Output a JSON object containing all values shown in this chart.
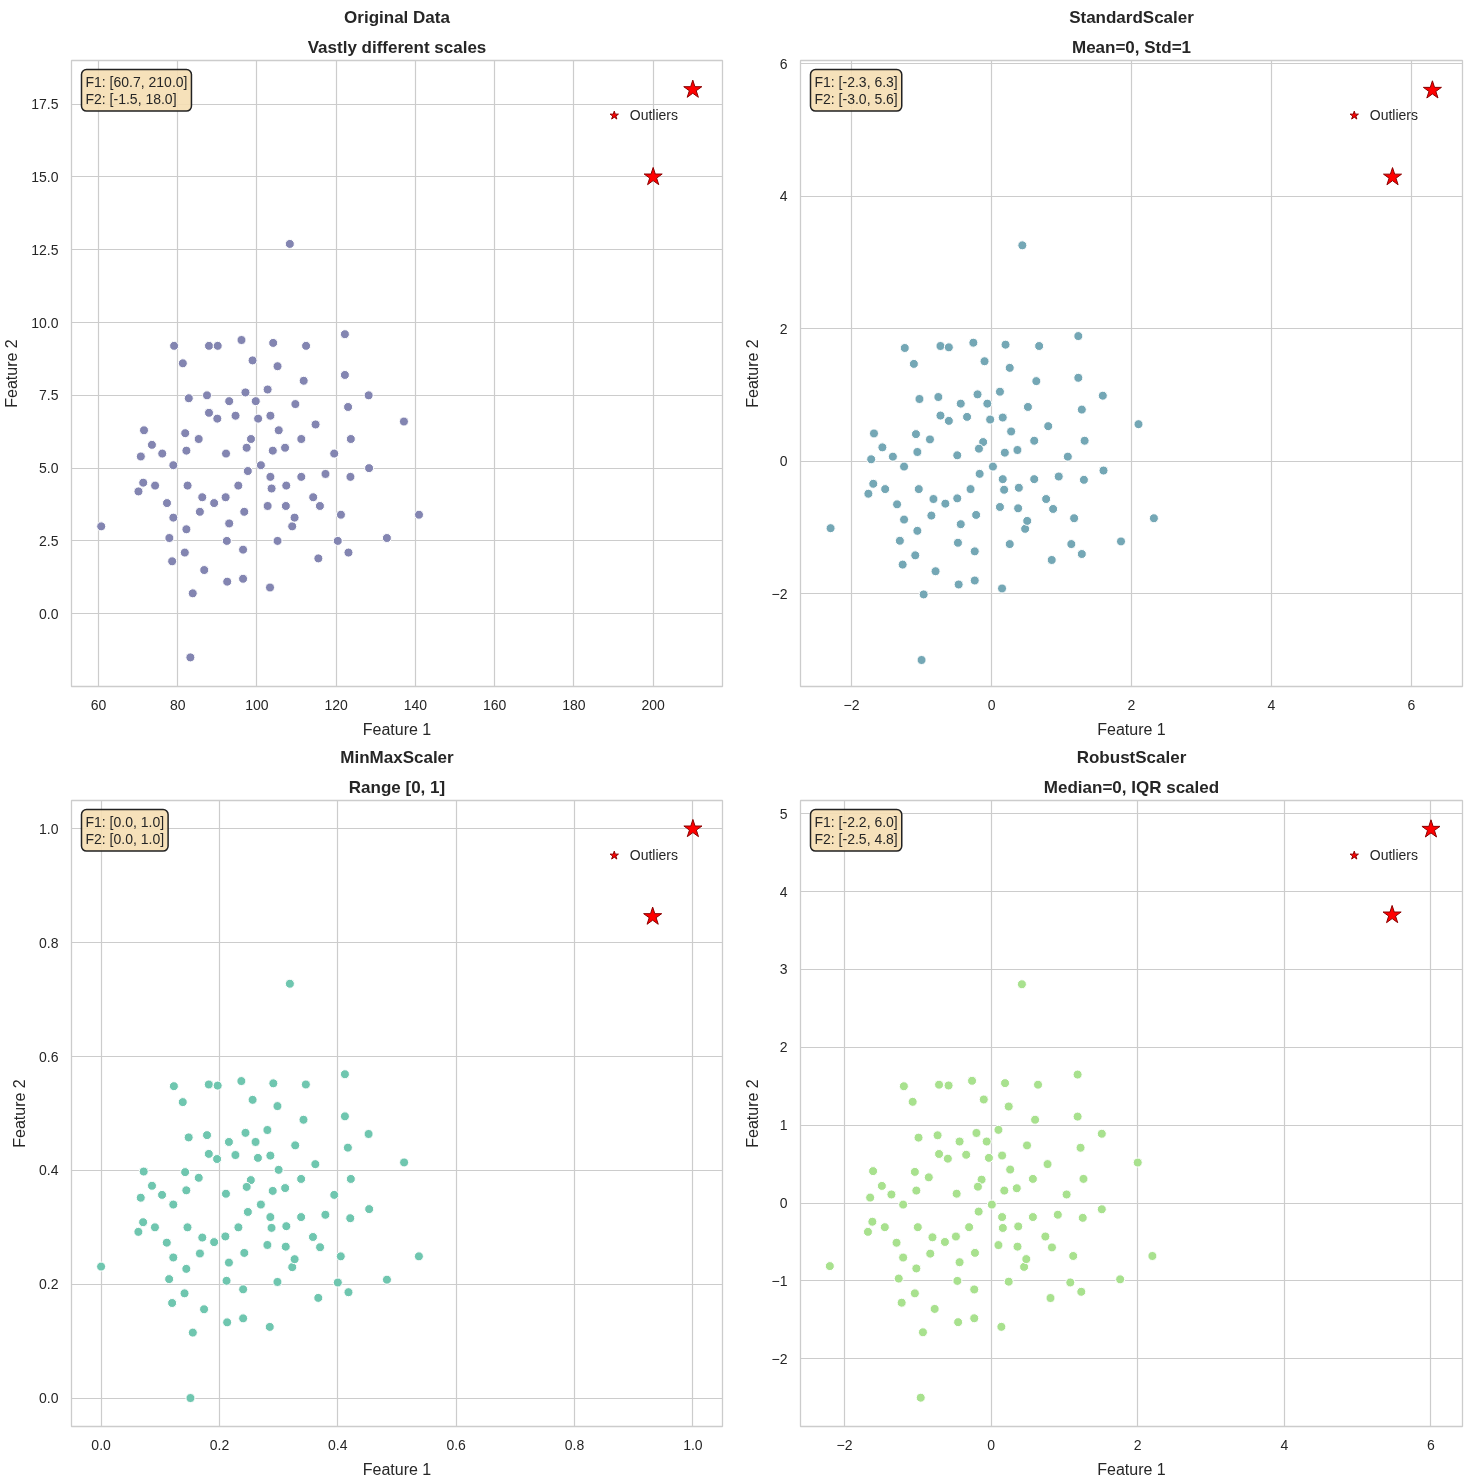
{
  "chart_data": [
    {
      "type": "scatter",
      "title": "Original Data",
      "subtitle": "Vastly different scales",
      "xlabel": "Feature 1",
      "ylabel": "Feature 2",
      "xlim": [
        53.2,
        217.5
      ],
      "ylim": [
        -2.5,
        19.0
      ],
      "xticks": [
        60,
        80,
        100,
        120,
        140,
        160,
        180,
        200
      ],
      "yticks": [
        {
          "value": 0,
          "label": "0.0"
        },
        2.5,
        {
          "value": 5,
          "label": "5.0"
        },
        7.5,
        {
          "value": 10,
          "label": "10.0"
        },
        12.5,
        {
          "value": 15,
          "label": "15.0"
        },
        17.5
      ],
      "grid": true,
      "legend": "top right",
      "annotations": [
        "F1: [60.7, 210.0]\nF2: [-1.5, 18.0]"
      ],
      "series": [
        {
          "color": "#8385b1",
          "marker": "circle",
          "x": [
            60.7,
            83.2,
            83.8,
            108.3,
            140.9,
            137.1,
            132.8,
            122.2,
            128.2,
            122.2,
            123.0,
            123.7,
            128.3,
            123.6,
            121.2,
            120.4,
            123.1,
            115.5,
            103.3,
            96.5,
            92.5,
            86.7,
            78.6,
            81.8,
            77.9,
            82.2,
            92.4,
            96.5,
            105.2,
            108.9,
            115.9,
            109.5,
            70.1,
            71.3,
            74.3,
            70.7,
            73.5,
            71.5,
            76.1,
            78.9,
            77.3,
            78.9,
            79.1,
            81.3,
            87.9,
            90.1,
            96.1,
            104.1,
            112.4,
            98.9,
            105.2,
            111.8,
            82.8,
            87.4,
            93.0,
            97.1,
            102.7,
            109.7,
            81.9,
            82.2,
            82.5,
            86.2,
            89.2,
            93.0,
            96.8,
            92.2,
            92.1,
            95.3,
            97.7,
            101.0,
            103.4,
            104.0,
            107.1,
            107.4,
            102.7,
            107.3,
            111.2,
            114.2,
            117.3,
            119.5,
            111.2,
            114.8,
            85.3,
            87.9,
            90.0,
            94.6,
            98.5,
            100.3,
            103.4,
            105.5,
            99.7,
            97.4,
            85.6,
            103.7
          ],
          "values": [
            3.0,
            -1.5,
            0.7,
            12.7,
            3.4,
            6.6,
            2.6,
            9.6,
            7.5,
            8.2,
            7.1,
            6.0,
            5.0,
            4.7,
            3.4,
            2.5,
            2.1,
            1.9,
            0.9,
            1.2,
            1.1,
            1.5,
            1.8,
            2.1,
            2.6,
            2.9,
            2.5,
            2.2,
            2.5,
            3.0,
            3.7,
            3.3,
            4.2,
            4.5,
            4.4,
            5.4,
            5.8,
            6.3,
            5.5,
            5.1,
            3.8,
            3.3,
            9.2,
            8.6,
            9.2,
            9.2,
            9.4,
            9.3,
            9.2,
            8.7,
            8.5,
            8.0,
            7.4,
            7.5,
            7.3,
            7.6,
            7.7,
            7.2,
            6.2,
            5.6,
            4.4,
            4.0,
            3.8,
            3.1,
            3.5,
            5.5,
            4.0,
            4.4,
            4.9,
            5.1,
            4.7,
            5.6,
            5.7,
            4.4,
            3.7,
            3.7,
            4.7,
            4.0,
            4.8,
            5.5,
            6.0,
            6.5,
            6.0,
            6.9,
            6.7,
            6.8,
            6.0,
            6.7,
            6.8,
            6.3,
            7.3,
            5.7,
            3.5,
            4.3
          ]
        },
        {
          "name": "Outliers",
          "color": "#ff0000",
          "marker": "star",
          "x": [
            210.0,
            200.0
          ],
          "values": [
            18.0,
            15.0
          ]
        }
      ]
    },
    {
      "type": "scatter",
      "title": "StandardScaler",
      "subtitle": "Mean=0, Std=1",
      "xlabel": "Feature 1",
      "ylabel": "Feature 2",
      "xlim": [
        -2.73,
        6.73
      ],
      "ylim": [
        -3.4,
        6.05
      ],
      "xticks": [
        {
          "value": -2,
          "label": "−2"
        },
        0,
        2,
        4,
        6
      ],
      "yticks": [
        {
          "value": -2,
          "label": "−2"
        },
        0,
        2,
        4,
        6
      ],
      "grid": true,
      "legend": "top right",
      "annotations": [
        "F1: [-2.3, 6.3]\nF2: [-3.0, 5.6]"
      ],
      "series": [
        {
          "color": "#74a7b5",
          "marker": "circle",
          "x": [
            -2.3,
            -1.0,
            -0.97,
            0.44,
            2.32,
            2.1,
            1.85,
            1.24,
            1.59,
            1.24,
            1.29,
            1.33,
            1.6,
            1.32,
            1.18,
            1.14,
            1.29,
            0.86,
            0.15,
            -0.24,
            -0.47,
            -0.8,
            -1.27,
            -1.09,
            -1.31,
            -1.06,
            -0.48,
            -0.24,
            0.26,
            0.48,
            0.88,
            0.51,
            -1.76,
            -1.69,
            -1.52,
            -1.72,
            -1.56,
            -1.68,
            -1.41,
            -1.25,
            -1.35,
            -1.25,
            -1.24,
            -1.11,
            -0.73,
            -0.61,
            -0.26,
            0.2,
            0.68,
            -0.1,
            0.26,
            0.64,
            -1.03,
            -0.76,
            -0.44,
            -0.2,
            0.12,
            0.52,
            -1.08,
            -1.06,
            -1.04,
            -0.83,
            -0.66,
            -0.44,
            -0.22,
            -0.49,
            -0.49,
            -0.3,
            -0.17,
            0.02,
            0.16,
            0.19,
            0.37,
            0.39,
            0.12,
            0.38,
            0.61,
            0.78,
            0.96,
            1.09,
            0.61,
            0.81,
            -0.88,
            -0.73,
            -0.61,
            -0.35,
            -0.12,
            -0.02,
            0.16,
            0.28,
            -0.06,
            -0.18,
            -0.86,
            0.18
          ],
          "values": [
            -1.01,
            -3.0,
            -2.01,
            3.26,
            -0.86,
            0.56,
            -1.21,
            1.89,
            0.99,
            1.26,
            0.78,
            0.31,
            -0.14,
            -0.28,
            -0.86,
            -1.25,
            -1.4,
            -1.49,
            -1.92,
            -1.8,
            -1.86,
            -1.66,
            -1.56,
            -1.42,
            -1.2,
            -1.05,
            -1.23,
            -1.36,
            -1.25,
            -1.02,
            -0.72,
            -0.9,
            -0.49,
            -0.34,
            -0.42,
            0.03,
            0.21,
            0.42,
            0.07,
            -0.08,
            -0.65,
            -0.88,
            1.71,
            1.47,
            1.74,
            1.72,
            1.79,
            1.76,
            1.74,
            1.51,
            1.41,
            1.21,
            0.94,
            0.97,
            0.87,
            1.01,
            1.05,
            0.82,
            0.41,
            0.14,
            -0.42,
            -0.57,
            -0.64,
            -0.95,
            -0.81,
            0.09,
            -0.56,
            -0.42,
            -0.19,
            -0.08,
            -0.27,
            0.13,
            0.17,
            -0.4,
            -0.69,
            -0.71,
            -0.27,
            -0.57,
            -0.23,
            0.07,
            0.31,
            0.53,
            0.33,
            0.69,
            0.61,
            0.67,
            0.29,
            0.63,
            0.66,
            0.45,
            0.87,
            0.19,
            -0.82,
            -0.43
          ]
        },
        {
          "name": "Outliers",
          "color": "#ff0000",
          "marker": "star",
          "x": [
            6.3,
            5.73
          ],
          "values": [
            5.6,
            4.29
          ]
        }
      ]
    },
    {
      "type": "scatter",
      "title": "MinMaxScaler",
      "subtitle": "Range [0, 1]",
      "xlabel": "Feature 1",
      "ylabel": "Feature 2",
      "xlim": [
        -0.05,
        1.05
      ],
      "ylim": [
        -0.05,
        1.05
      ],
      "xticks": [
        {
          "value": 0,
          "label": "0.0"
        },
        0.2,
        0.4,
        0.6,
        0.8,
        {
          "value": 1,
          "label": "1.0"
        }
      ],
      "yticks": [
        {
          "value": 0,
          "label": "0.0"
        },
        0.2,
        0.4,
        0.6,
        0.8,
        {
          "value": 1,
          "label": "1.0"
        }
      ],
      "grid": true,
      "legend": "top right",
      "annotations": [
        "F1: [0.0, 1.0]\nF2: [0.0, 1.0]"
      ],
      "series": [
        {
          "color": "#6fc6af",
          "marker": "circle",
          "x": [
            0.0,
            0.151,
            0.155,
            0.319,
            0.537,
            0.512,
            0.483,
            0.412,
            0.452,
            0.412,
            0.417,
            0.422,
            0.453,
            0.421,
            0.405,
            0.4,
            0.418,
            0.367,
            0.285,
            0.24,
            0.213,
            0.174,
            0.12,
            0.141,
            0.115,
            0.144,
            0.212,
            0.24,
            0.298,
            0.323,
            0.37,
            0.327,
            0.063,
            0.071,
            0.091,
            0.067,
            0.086,
            0.072,
            0.103,
            0.122,
            0.111,
            0.122,
            0.123,
            0.138,
            0.182,
            0.197,
            0.237,
            0.291,
            0.346,
            0.256,
            0.298,
            0.342,
            0.148,
            0.179,
            0.216,
            0.244,
            0.281,
            0.328,
            0.142,
            0.144,
            0.146,
            0.171,
            0.191,
            0.216,
            0.242,
            0.211,
            0.21,
            0.232,
            0.248,
            0.27,
            0.286,
            0.29,
            0.311,
            0.313,
            0.281,
            0.312,
            0.338,
            0.358,
            0.379,
            0.394,
            0.338,
            0.362,
            0.165,
            0.182,
            0.196,
            0.227,
            0.253,
            0.265,
            0.286,
            0.3,
            0.261,
            0.246,
            0.167,
            0.288
          ],
          "values": [
            0.231,
            0.0,
            0.115,
            0.728,
            0.249,
            0.414,
            0.208,
            0.569,
            0.464,
            0.495,
            0.44,
            0.385,
            0.332,
            0.316,
            0.249,
            0.203,
            0.186,
            0.176,
            0.125,
            0.14,
            0.133,
            0.156,
            0.167,
            0.184,
            0.209,
            0.227,
            0.206,
            0.191,
            0.204,
            0.23,
            0.265,
            0.244,
            0.292,
            0.309,
            0.3,
            0.352,
            0.373,
            0.398,
            0.357,
            0.34,
            0.273,
            0.247,
            0.548,
            0.52,
            0.551,
            0.549,
            0.557,
            0.553,
            0.551,
            0.524,
            0.513,
            0.489,
            0.458,
            0.462,
            0.45,
            0.466,
            0.471,
            0.444,
            0.397,
            0.365,
            0.3,
            0.282,
            0.274,
            0.238,
            0.255,
            0.359,
            0.284,
            0.3,
            0.327,
            0.34,
            0.318,
            0.364,
            0.369,
            0.302,
            0.269,
            0.266,
            0.318,
            0.283,
            0.322,
            0.357,
            0.385,
            0.411,
            0.387,
            0.429,
            0.42,
            0.427,
            0.383,
            0.422,
            0.426,
            0.401,
            0.45,
            0.371,
            0.254,
            0.299
          ]
        },
        {
          "name": "Outliers",
          "color": "#ff0000",
          "marker": "star",
          "x": [
            1.0,
            0.932
          ],
          "values": [
            1.0,
            0.846
          ]
        }
      ]
    },
    {
      "type": "scatter",
      "title": "RobustScaler",
      "subtitle": "Median=0, IQR scaled",
      "xlabel": "Feature 1",
      "ylabel": "Feature 2",
      "xlim": [
        -2.6,
        6.43
      ],
      "ylim": [
        -2.87,
        5.17
      ],
      "xticks": [
        {
          "value": -2,
          "label": "−2"
        },
        0,
        2,
        4,
        6
      ],
      "yticks": [
        {
          "value": -2,
          "label": "−2"
        },
        {
          "value": -1,
          "label": "−1"
        },
        0,
        1,
        2,
        3,
        4,
        5
      ],
      "grid": true,
      "legend": "top right",
      "annotations": [
        "F1: [-2.2, 6.0]\nF2: [-2.5, 4.8]"
      ],
      "series": [
        {
          "color": "#a8e18e",
          "marker": "circle",
          "x": [
            -2.2,
            -0.96,
            -0.93,
            0.42,
            2.2,
            2.0,
            1.76,
            1.18,
            1.51,
            1.18,
            1.22,
            1.26,
            1.51,
            1.25,
            1.12,
            1.08,
            1.23,
            0.81,
            0.14,
            -0.23,
            -0.45,
            -0.77,
            -1.22,
            -1.04,
            -1.26,
            -1.02,
            -0.46,
            -0.23,
            0.24,
            0.45,
            0.83,
            0.48,
            -1.68,
            -1.62,
            -1.45,
            -1.65,
            -1.49,
            -1.61,
            -1.36,
            -1.2,
            -1.29,
            -1.2,
            -1.19,
            -1.07,
            -0.71,
            -0.58,
            -0.26,
            0.19,
            0.64,
            -0.1,
            0.24,
            0.6,
            -0.99,
            -0.73,
            -0.43,
            -0.2,
            0.1,
            0.49,
            -1.04,
            -1.02,
            -1.0,
            -0.8,
            -0.63,
            -0.43,
            -0.22,
            -0.47,
            -0.48,
            -0.3,
            -0.17,
            0.01,
            0.15,
            0.18,
            0.35,
            0.37,
            0.1,
            0.36,
            0.57,
            0.74,
            0.91,
            1.03,
            0.57,
            0.77,
            -0.85,
            -0.71,
            -0.59,
            -0.34,
            -0.13,
            -0.03,
            0.15,
            0.26,
            -0.06,
            -0.18,
            -0.83,
            0.16
          ],
          "values": [
            -0.81,
            -2.5,
            -1.66,
            2.81,
            -0.68,
            0.52,
            -0.98,
            1.65,
            0.89,
            1.11,
            0.71,
            0.31,
            -0.08,
            -0.19,
            -0.68,
            -1.02,
            -1.14,
            -1.22,
            -1.59,
            -1.48,
            -1.53,
            -1.36,
            -1.28,
            -1.16,
            -0.97,
            -0.84,
            -1.0,
            -1.11,
            -1.01,
            -0.82,
            -0.57,
            -0.72,
            -0.37,
            -0.24,
            -0.31,
            0.07,
            0.22,
            0.41,
            0.11,
            -0.02,
            -0.51,
            -0.7,
            1.5,
            1.3,
            1.52,
            1.51,
            1.57,
            1.54,
            1.52,
            1.33,
            1.24,
            1.07,
            0.84,
            0.87,
            0.79,
            0.9,
            0.94,
            0.74,
            0.4,
            0.16,
            -0.31,
            -0.44,
            -0.5,
            -0.76,
            -0.64,
            0.12,
            -0.43,
            -0.31,
            -0.11,
            -0.02,
            -0.18,
            0.16,
            0.19,
            -0.3,
            -0.54,
            -0.56,
            -0.18,
            -0.43,
            -0.15,
            0.11,
            0.31,
            0.5,
            0.33,
            0.63,
            0.57,
            0.62,
            0.3,
            0.58,
            0.61,
            0.43,
            0.79,
            0.21,
            -0.65,
            -0.32
          ]
        },
        {
          "name": "Outliers",
          "color": "#ff0000",
          "marker": "star",
          "x": [
            6.0,
            5.47
          ],
          "values": [
            4.8,
            3.7
          ]
        }
      ]
    }
  ]
}
